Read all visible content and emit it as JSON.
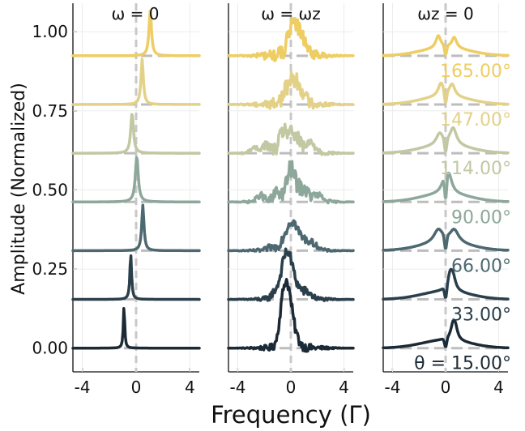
{
  "chart_data": {
    "type": "line",
    "title": "",
    "xlabel": "Frequency (Γ)",
    "ylabel": "Amplitude (Normalized)",
    "xlim": [
      -4.7,
      4.7
    ],
    "ylim": [
      -0.075,
      1.09
    ],
    "x_ticks": [
      -4,
      0,
      4
    ],
    "x_tick_labels": [
      "-4",
      "0",
      "4"
    ],
    "y_ticks": [
      0.0,
      0.25,
      0.5,
      0.75,
      1.0
    ],
    "y_tick_labels": [
      "0.00",
      "0.25",
      "0.50",
      "0.75",
      "1.00"
    ],
    "grid": true,
    "panels": [
      {
        "title": "ω = 0"
      },
      {
        "title": "ω = ωz"
      },
      {
        "title": "ωz = 0"
      }
    ],
    "series": [
      {
        "name": "θ = 15.00°",
        "label": "θ = 15.00°",
        "baseline": 0.0,
        "color": "#1c2a35",
        "peaks": [
          [
            -0.9,
            0.06,
            0.42
          ]
        ],
        "noise": [
          [
            -0.7,
            0.07
          ],
          [
            -0.4,
            0.12
          ],
          [
            -0.1,
            0.09
          ],
          [
            0.3,
            0.03
          ]
        ],
        "notch": [
          0.6,
          0.45,
          0.2,
          0.42
        ]
      },
      {
        "name": "33.00°",
        "label": "33.00°",
        "baseline": 0.154,
        "color": "#2b3f4b",
        "peaks": [
          [
            -0.4,
            0.075,
            0.45
          ]
        ],
        "noise": [
          [
            -1.2,
            0.02
          ],
          [
            -0.6,
            0.05
          ],
          [
            -0.2,
            0.12
          ],
          [
            0.4,
            0.03
          ],
          [
            1.2,
            0.02
          ]
        ],
        "notch": [
          0.4,
          0.55,
          0.22,
          0.42
        ]
      },
      {
        "name": "66.00°",
        "label": "66.00°",
        "baseline": 0.308,
        "color": "#4d6870",
        "peaks": [
          [
            0.5,
            0.1,
            0.45
          ]
        ],
        "noise": [
          [
            -1.5,
            0.01
          ],
          [
            -0.5,
            0.03
          ],
          [
            0.1,
            0.08
          ],
          [
            0.8,
            0.03
          ],
          [
            1.6,
            0.02
          ]
        ],
        "notch": [
          -0.5,
          0.45,
          0.4,
          0.45
        ]
      },
      {
        "name": "90.00°",
        "label": "90.00°",
        "baseline": 0.462,
        "color": "#8da79b",
        "peaks": [
          [
            0.05,
            0.13,
            0.45
          ]
        ],
        "noise": [
          [
            -2.3,
            0.02
          ],
          [
            -1.0,
            0.03
          ],
          [
            0.0,
            0.1
          ],
          [
            0.9,
            0.04
          ],
          [
            2.0,
            0.02
          ]
        ],
        "notch": [
          0.0,
          0.43,
          0.28,
          0.55
        ]
      },
      {
        "name": "114.00°",
        "label": "114.00°",
        "baseline": 0.616,
        "color": "#c2c8a2",
        "peaks": [
          [
            -0.3,
            0.12,
            0.4
          ]
        ],
        "noise": [
          [
            -2.8,
            0.015
          ],
          [
            -1.9,
            0.025
          ],
          [
            -0.5,
            0.07
          ],
          [
            0.3,
            0.05
          ],
          [
            1.5,
            0.03
          ]
        ],
        "notch": [
          -0.4,
          0.4,
          0.3,
          0.6
        ]
      },
      {
        "name": "147.00°",
        "label": "147.00°",
        "baseline": 0.77,
        "color": "#e3d188",
        "peaks": [
          [
            0.45,
            0.105,
            0.45
          ]
        ],
        "noise": [
          [
            -0.4,
            0.02
          ],
          [
            0.1,
            0.06
          ],
          [
            0.7,
            0.04
          ]
        ],
        "notch": [
          -0.3,
          0.45,
          0.25,
          0.42
        ]
      },
      {
        "name": "165.00°",
        "label": "165.00°",
        "baseline": 0.924,
        "color": "#eecd62",
        "peaks": [
          [
            1.05,
            0.11,
            0.45
          ]
        ],
        "noise": [
          [
            0.0,
            0.05
          ],
          [
            0.5,
            0.07
          ],
          [
            1.1,
            0.02
          ]
        ],
        "notch": [
          -0.5,
          0.43,
          0.22,
          0.38
        ]
      }
    ]
  }
}
